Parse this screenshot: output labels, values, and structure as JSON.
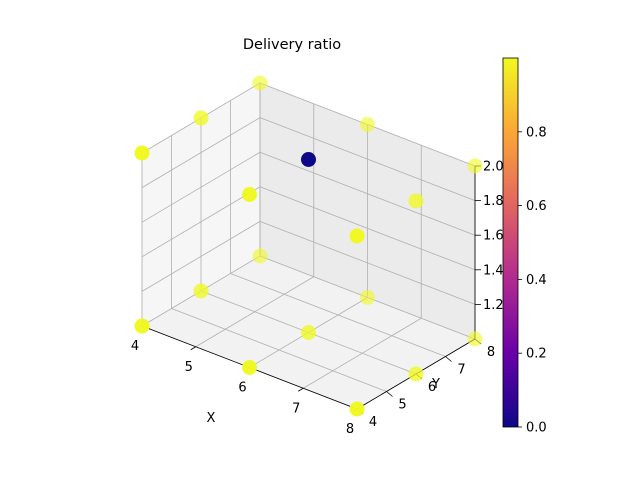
{
  "chart_data": {
    "type": "scatter3d",
    "title": "Delivery ratio",
    "xlabel": "X",
    "ylabel": "Y",
    "zlabel": "",
    "x_ticks": [
      "4",
      "5",
      "6",
      "7",
      "8"
    ],
    "y_ticks": [
      "4",
      "5",
      "6",
      "7",
      "8"
    ],
    "z_ticks": [
      "1.2",
      "1.4",
      "1.6",
      "1.8",
      "2.0"
    ],
    "xlim": [
      4,
      8
    ],
    "ylim": [
      4,
      8
    ],
    "zlim": [
      1,
      2
    ],
    "grid": true,
    "colormap": "plasma",
    "colorbar": {
      "ticks": [
        "0.0",
        "0.2",
        "0.4",
        "0.6",
        "0.8"
      ],
      "range": [
        0,
        1
      ],
      "colors": [
        "#0d0887",
        "#6a00a8",
        "#b12a90",
        "#e16462",
        "#fca636",
        "#f0f921"
      ]
    },
    "points": [
      {
        "x": 4,
        "y": 4,
        "z": 1,
        "v": 1
      },
      {
        "x": 6,
        "y": 4,
        "z": 1,
        "v": 1
      },
      {
        "x": 8,
        "y": 4,
        "z": 1,
        "v": 1
      },
      {
        "x": 4,
        "y": 6,
        "z": 1,
        "v": 1
      },
      {
        "x": 6,
        "y": 6,
        "z": 1,
        "v": 1
      },
      {
        "x": 8,
        "y": 6,
        "z": 1,
        "v": 1
      },
      {
        "x": 4,
        "y": 8,
        "z": 1,
        "v": 1
      },
      {
        "x": 6,
        "y": 8,
        "z": 1,
        "v": 1
      },
      {
        "x": 8,
        "y": 8,
        "z": 1,
        "v": 1
      },
      {
        "x": 4,
        "y": 4,
        "z": 2,
        "v": 1
      },
      {
        "x": 6,
        "y": 4,
        "z": 2,
        "v": 1
      },
      {
        "x": 8,
        "y": 4,
        "z": 2,
        "v": 1
      },
      {
        "x": 4,
        "y": 6,
        "z": 2,
        "v": 1
      },
      {
        "x": 6,
        "y": 6,
        "z": 2,
        "v": 0
      },
      {
        "x": 8,
        "y": 6,
        "z": 2,
        "v": 1
      },
      {
        "x": 4,
        "y": 8,
        "z": 2,
        "v": 1
      },
      {
        "x": 6,
        "y": 8,
        "z": 2,
        "v": 1
      },
      {
        "x": 8,
        "y": 8,
        "z": 2,
        "v": 1
      }
    ]
  }
}
